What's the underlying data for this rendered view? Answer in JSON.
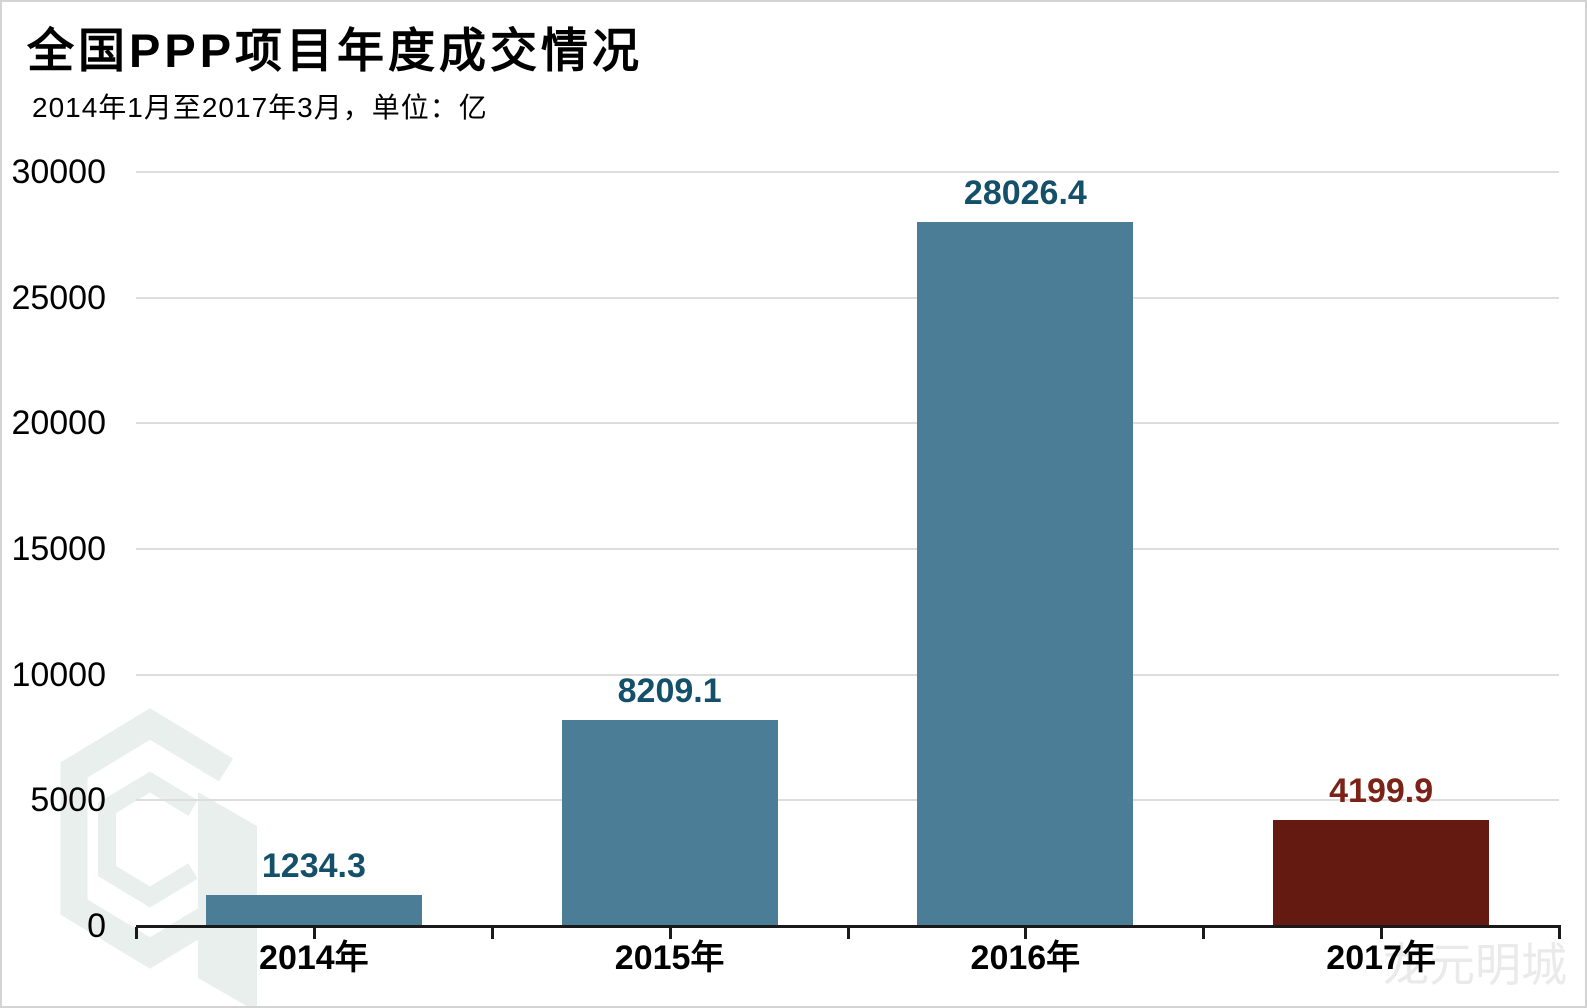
{
  "page": {
    "title": "全国PPP项目年度成交情况",
    "subtitle": "2014年1月至2017年3月，单位：亿",
    "watermark_text": "龙元明城",
    "watermark_logo_icon": "hexagon-cube-logo"
  },
  "chart_data": {
    "type": "bar",
    "title": "全国PPP项目年度成交情况",
    "subtitle": "2014年1月至2017年3月，单位：亿",
    "unit": "亿",
    "categories": [
      "2014年",
      "2015年",
      "2016年",
      "2017年"
    ],
    "values": [
      1234.3,
      8209.1,
      28026.4,
      4199.9
    ],
    "value_labels": [
      "1234.3",
      "8209.1",
      "28026.4",
      "4199.9"
    ],
    "bar_colors": [
      "#4b7e96",
      "#4b7e96",
      "#4b7e96",
      "#641a10"
    ],
    "value_label_colors": [
      "#15506b",
      "#15506b",
      "#15506b",
      "#7b2316"
    ],
    "ylim": [
      0,
      30000
    ],
    "ytick_step": 5000,
    "ytick_labels": [
      "0",
      "5000",
      "10000",
      "15000",
      "20000",
      "25000",
      "30000"
    ],
    "xlabel": "",
    "ylabel": "",
    "grid": "horizontal-light",
    "legend_position": "none"
  },
  "colors": {
    "background": "#ffffff",
    "page_border": "#d3d3d3",
    "bar_primary": "#4b7e96",
    "bar_accent": "#641a10",
    "value_label_primary": "#15506b",
    "value_label_accent": "#7b2316",
    "gridline": "#dddddd",
    "axis": "#1a1a1a",
    "text": "#000000",
    "watermark_logo": "#e9efec",
    "watermark_text": "#eaeaea"
  }
}
